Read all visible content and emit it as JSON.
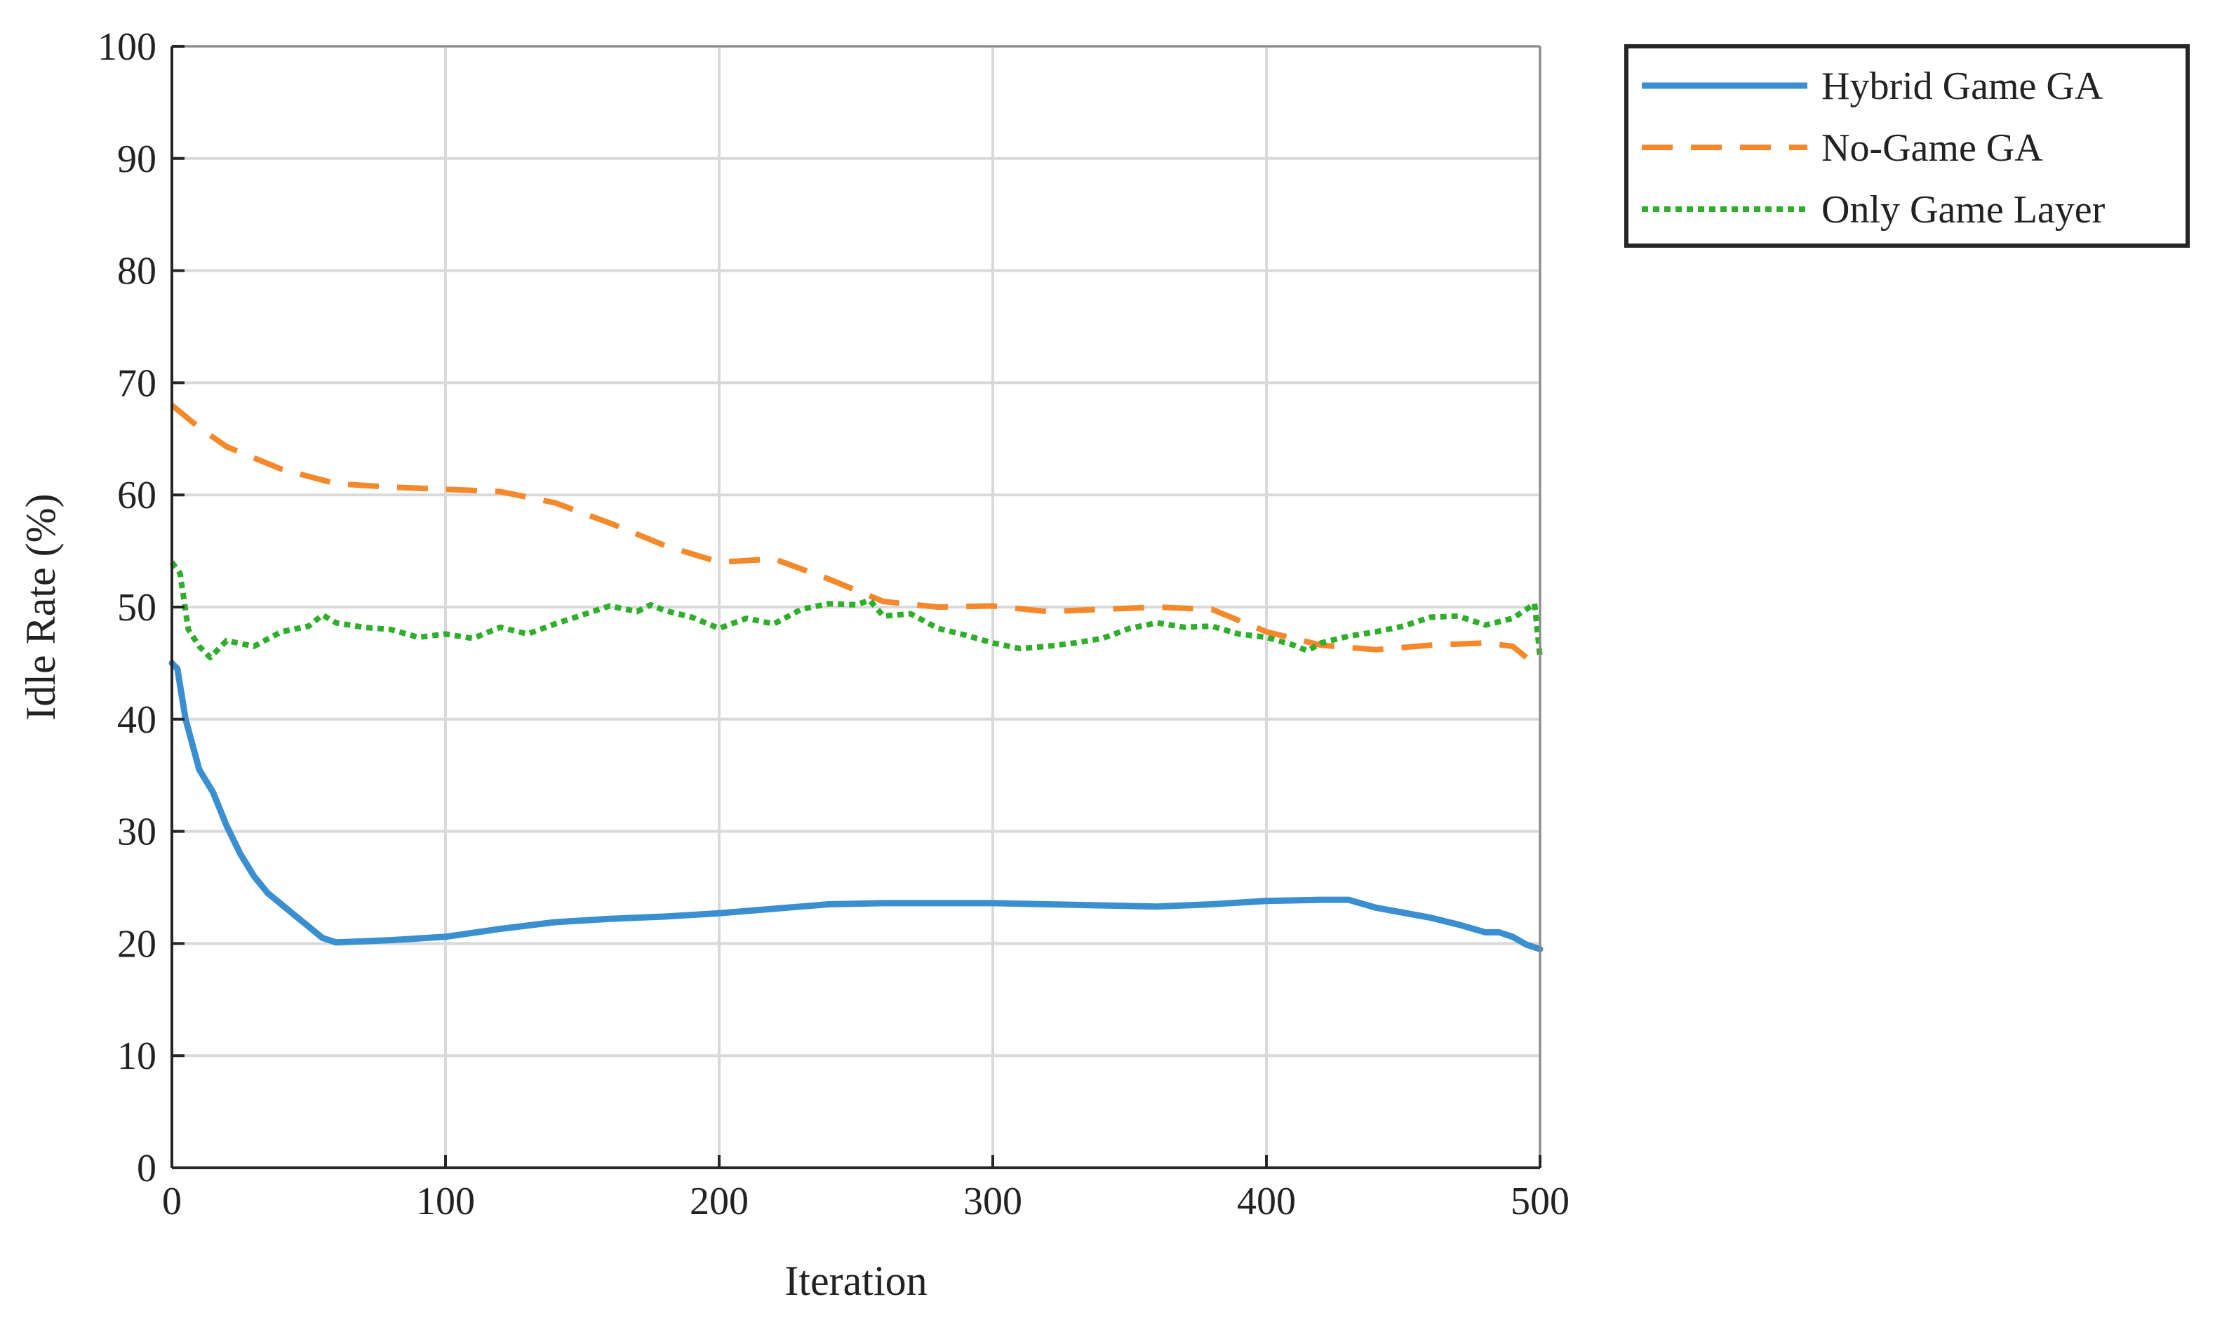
{
  "chart_data": {
    "type": "line",
    "title": "",
    "xlabel": "Iteration",
    "ylabel": "Idle Rate (%)",
    "xlim": [
      0,
      500
    ],
    "ylim": [
      0,
      100
    ],
    "xticks": [
      "0",
      "100",
      "200",
      "300",
      "400",
      "500"
    ],
    "yticks": [
      "0",
      "10",
      "20",
      "30",
      "40",
      "50",
      "60",
      "70",
      "80",
      "90",
      "100"
    ],
    "grid": true,
    "legend_position": "outside-top-right",
    "series": [
      {
        "name": "Hybrid Game GA",
        "color": "#3A8FD0",
        "style": "solid",
        "x": [
          0,
          2,
          5,
          10,
          15,
          20,
          25,
          30,
          35,
          40,
          45,
          50,
          55,
          60,
          80,
          100,
          120,
          140,
          160,
          180,
          200,
          220,
          240,
          260,
          280,
          300,
          320,
          340,
          360,
          380,
          400,
          420,
          430,
          440,
          460,
          470,
          480,
          485,
          490,
          495,
          500
        ],
        "y": [
          45,
          44.5,
          40,
          35.5,
          33.5,
          30.5,
          28,
          26,
          24.5,
          23.5,
          22.5,
          21.5,
          20.5,
          20.1,
          20.3,
          20.6,
          21.3,
          21.9,
          22.2,
          22.4,
          22.7,
          23.1,
          23.5,
          23.6,
          23.6,
          23.6,
          23.5,
          23.4,
          23.3,
          23.5,
          23.8,
          23.9,
          23.9,
          23.2,
          22.3,
          21.7,
          21,
          21,
          20.6,
          19.9,
          19.5
        ]
      },
      {
        "name": "No-Game GA",
        "color": "#F4882A",
        "style": "dashed",
        "x": [
          0,
          10,
          20,
          40,
          60,
          80,
          100,
          120,
          140,
          160,
          180,
          200,
          220,
          240,
          260,
          280,
          300,
          320,
          340,
          360,
          380,
          400,
          420,
          440,
          460,
          480,
          490,
          500
        ],
        "y": [
          68,
          66,
          64.3,
          62.3,
          61,
          60.7,
          60.5,
          60.3,
          59.3,
          57.5,
          55.5,
          54,
          54.3,
          52.5,
          50.5,
          50,
          50.1,
          49.6,
          49.8,
          50,
          49.8,
          47.8,
          46.6,
          46.2,
          46.6,
          46.8,
          46.5,
          44.5
        ]
      },
      {
        "name": "Only Game Layer",
        "color": "#2EAE2A",
        "style": "dotted",
        "x": [
          0,
          3,
          6,
          10,
          14,
          20,
          30,
          40,
          50,
          55,
          60,
          70,
          80,
          90,
          100,
          110,
          120,
          130,
          140,
          150,
          160,
          170,
          175,
          180,
          190,
          200,
          210,
          220,
          230,
          240,
          250,
          255,
          260,
          270,
          280,
          290,
          300,
          310,
          320,
          330,
          340,
          350,
          360,
          370,
          380,
          390,
          400,
          410,
          415,
          420,
          430,
          440,
          450,
          460,
          470,
          480,
          490,
          495,
          498,
          500
        ],
        "y": [
          54,
          53,
          48,
          46.5,
          45.5,
          47,
          46.5,
          47.8,
          48.3,
          49.3,
          48.6,
          48.2,
          48,
          47.3,
          47.6,
          47.2,
          48.2,
          47.6,
          48.5,
          49.3,
          50.1,
          49.6,
          50.2,
          49.7,
          49.1,
          48.1,
          49,
          48.5,
          49.8,
          50.3,
          50.2,
          50.6,
          49.2,
          49.4,
          48.1,
          47.5,
          46.8,
          46.3,
          46.5,
          46.8,
          47.2,
          48.1,
          48.6,
          48.2,
          48.3,
          47.6,
          47.3,
          46.6,
          46.1,
          46.8,
          47.4,
          47.8,
          48.3,
          49.1,
          49.2,
          48.4,
          49,
          49.8,
          50.3,
          45.5
        ]
      }
    ]
  }
}
